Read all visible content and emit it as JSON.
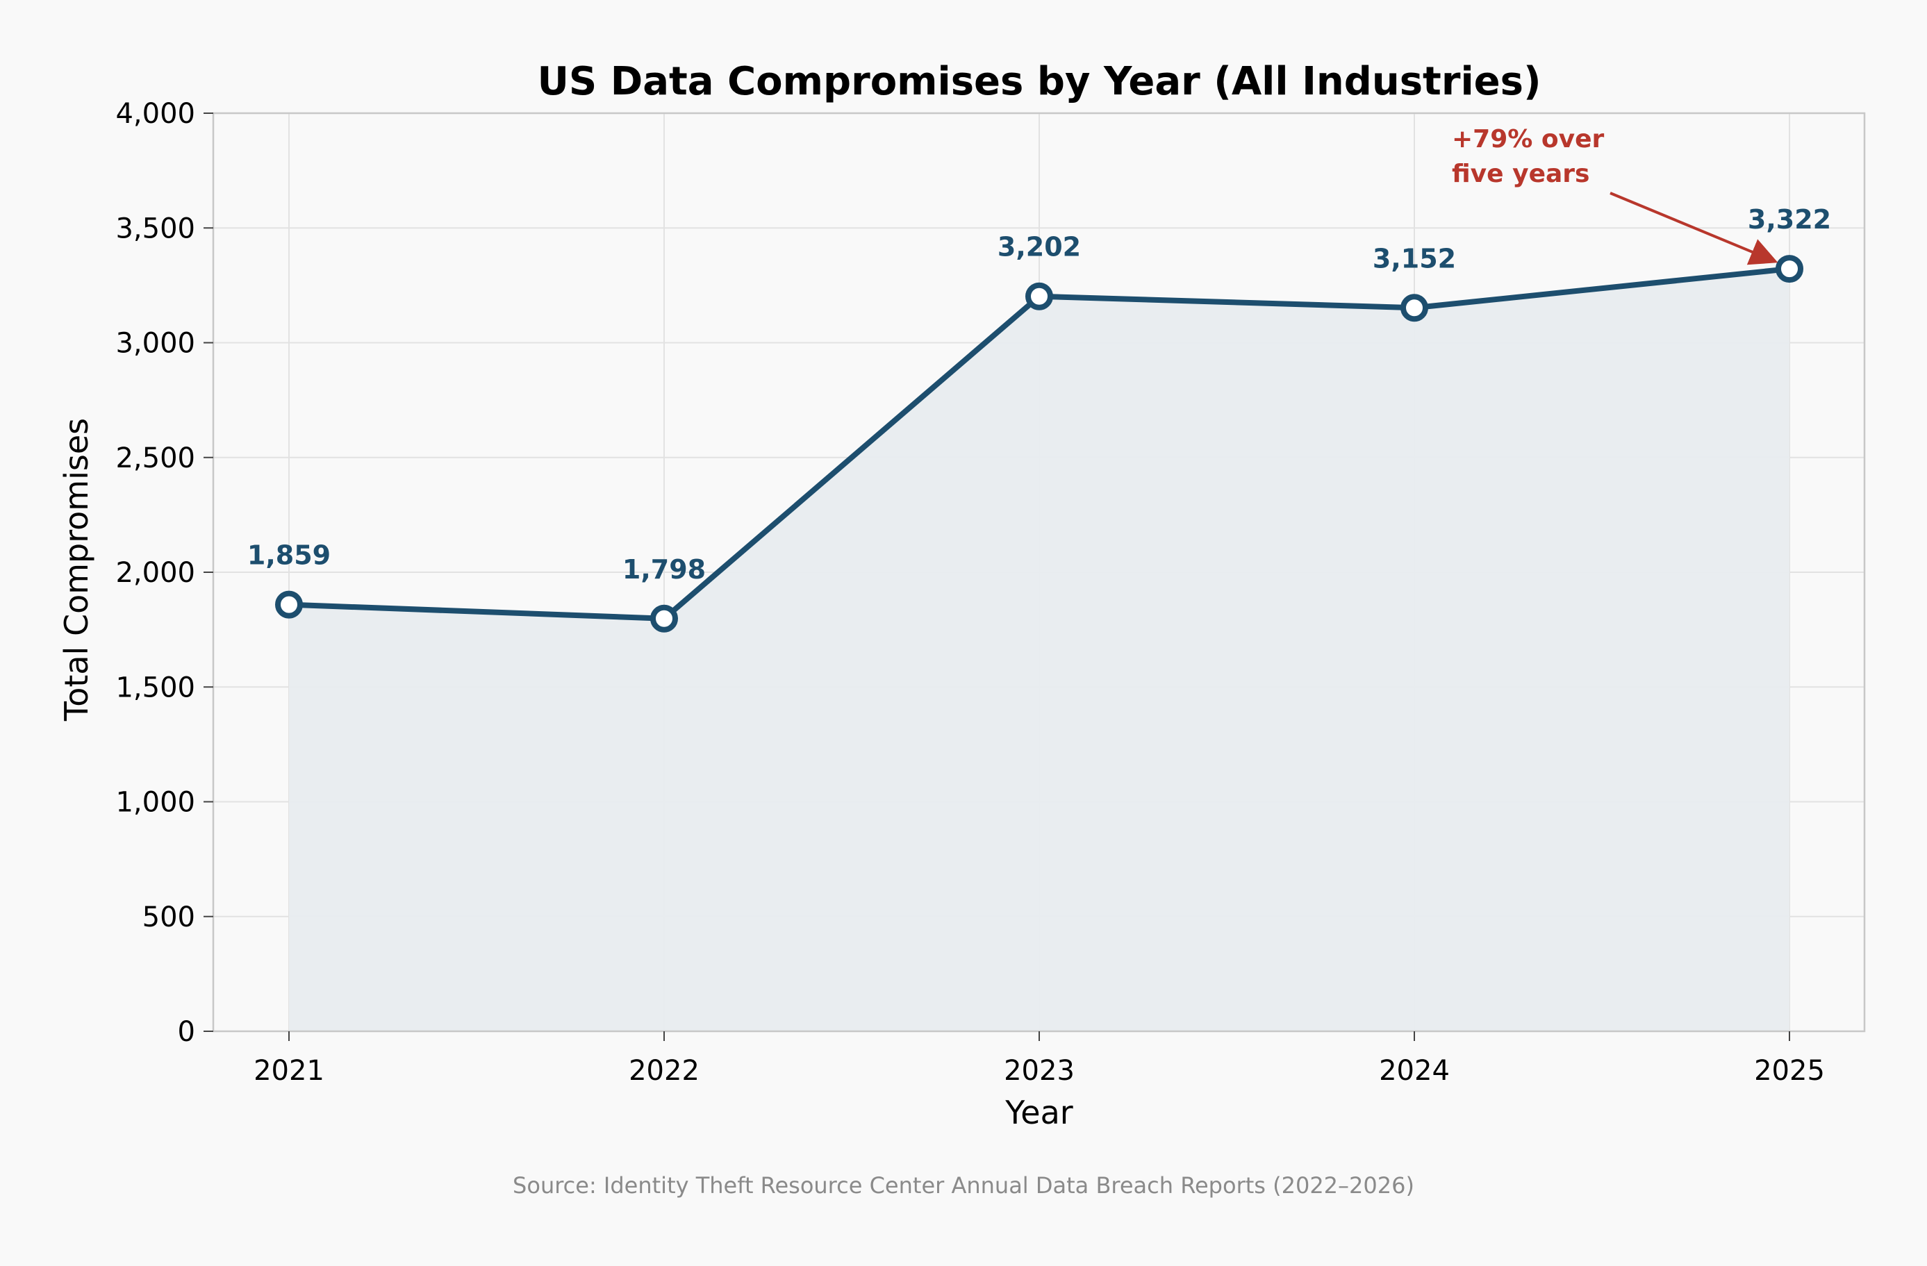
{
  "chart_data": {
    "type": "line",
    "title": "US Data Compromises by Year (All Industries)",
    "xlabel": "Year",
    "ylabel": "Total Compromises",
    "categories": [
      "2021",
      "2022",
      "2023",
      "2024",
      "2025"
    ],
    "series": [
      {
        "values": [
          1859,
          1798,
          3202,
          3152,
          3322
        ],
        "color": "#1d4e6e",
        "fill_color": "#e8ecef"
      }
    ],
    "data_labels": [
      "1,859",
      "1,798",
      "3,202",
      "3,152",
      "3,322"
    ],
    "ylim": [
      0,
      4000
    ],
    "yticks": [
      0,
      500,
      1000,
      1500,
      2000,
      2500,
      3000,
      3500,
      4000
    ],
    "ytick_labels": [
      "0",
      "500",
      "1,000",
      "1,500",
      "2,000",
      "2,500",
      "3,000",
      "3,500",
      "4,000"
    ],
    "grid": true,
    "area_fill": true,
    "annotation": {
      "lines": [
        "+79% over",
        "five years"
      ],
      "color": "#b8372c",
      "points_to_category": "2025"
    },
    "source": "Source: Identity Theft Resource Center Annual Data Breach Reports (2022–2026)"
  },
  "colors": {
    "background": "#f9f9f9",
    "plot_background": "#f9f9f9",
    "grid": "#e2e2e2",
    "axis": "#c8c8c8"
  }
}
